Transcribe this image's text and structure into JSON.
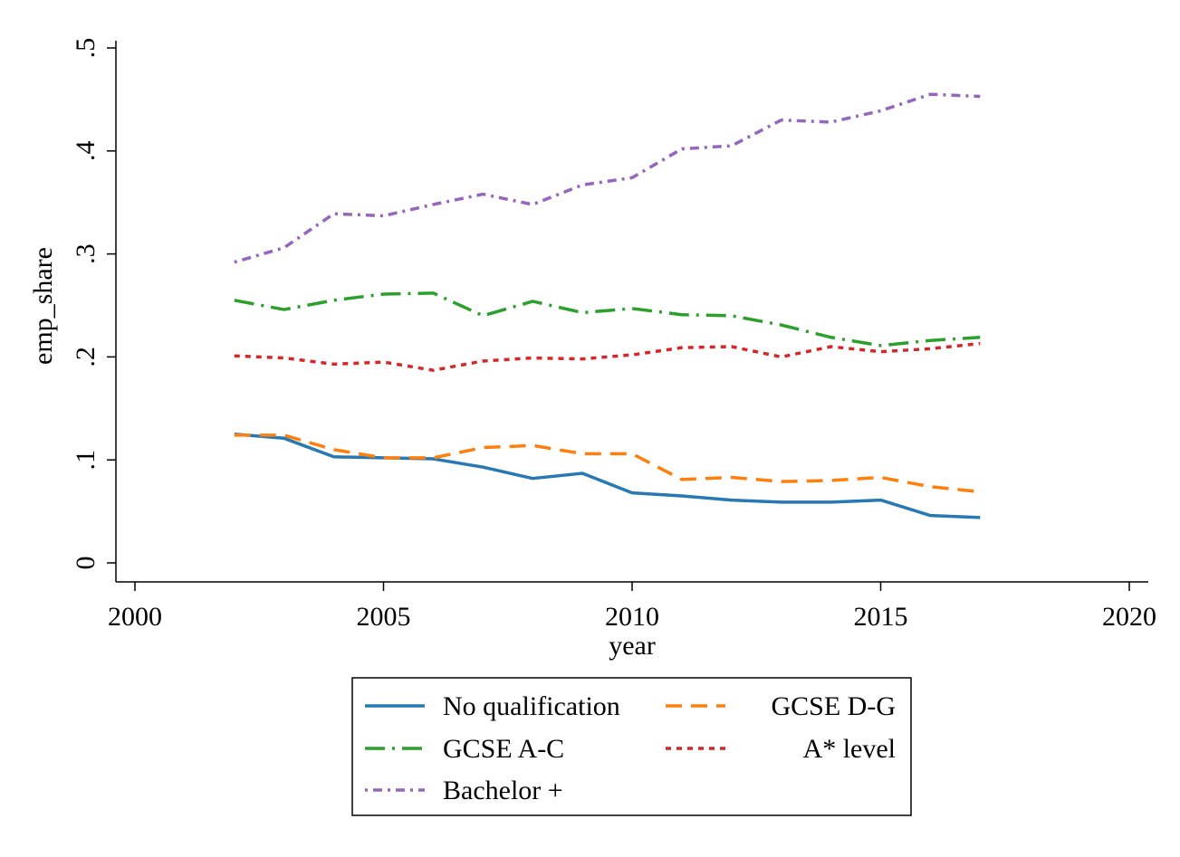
{
  "chart_data": {
    "type": "line",
    "xlabel": "year",
    "ylabel": "emp_share",
    "xlim": [
      2000,
      2020
    ],
    "ylim": [
      0,
      0.5
    ],
    "xticks": [
      {
        "value": 2000,
        "label": "2000"
      },
      {
        "value": 2005,
        "label": "2005"
      },
      {
        "value": 2010,
        "label": "2010"
      },
      {
        "value": 2015,
        "label": "2015"
      },
      {
        "value": 2020,
        "label": "2020"
      }
    ],
    "yticks": [
      {
        "value": 0,
        "label": "0"
      },
      {
        "value": 0.1,
        "label": ".1"
      },
      {
        "value": 0.2,
        "label": ".2"
      },
      {
        "value": 0.3,
        "label": ".3"
      },
      {
        "value": 0.4,
        "label": ".4"
      },
      {
        "value": 0.5,
        "label": ".5"
      }
    ],
    "grid": false,
    "legend_position": "bottom",
    "x": [
      2002,
      2003,
      2004,
      2005,
      2006,
      2007,
      2008,
      2009,
      2010,
      2011,
      2012,
      2013,
      2014,
      2015,
      2016,
      2017
    ],
    "series": [
      {
        "name": "No qualification",
        "color": "#2878b4",
        "dash": "solid",
        "values": [
          0.125,
          0.121,
          0.103,
          0.102,
          0.101,
          0.093,
          0.082,
          0.087,
          0.068,
          0.065,
          0.061,
          0.059,
          0.059,
          0.061,
          0.046,
          0.044
        ]
      },
      {
        "name": "GCSE D-G",
        "color": "#ff7f0e",
        "dash": "dash",
        "values": [
          0.124,
          0.124,
          0.11,
          0.102,
          0.102,
          0.112,
          0.114,
          0.106,
          0.106,
          0.081,
          0.083,
          0.079,
          0.08,
          0.083,
          0.074,
          0.069
        ]
      },
      {
        "name": "GCSE A-C",
        "color": "#2ca02c",
        "dash": "dashdot",
        "values": [
          0.255,
          0.246,
          0.255,
          0.261,
          0.262,
          0.24,
          0.254,
          0.243,
          0.247,
          0.241,
          0.24,
          0.231,
          0.219,
          0.211,
          0.216,
          0.219
        ]
      },
      {
        "name": "A* level",
        "color": "#d62728",
        "dash": "dot",
        "values": [
          0.201,
          0.199,
          0.193,
          0.195,
          0.187,
          0.196,
          0.199,
          0.198,
          0.202,
          0.209,
          0.21,
          0.2,
          0.21,
          0.205,
          0.208,
          0.213
        ]
      },
      {
        "name": "Bachelor +",
        "color": "#9467bd",
        "dash": "dotdash",
        "values": [
          0.292,
          0.306,
          0.339,
          0.337,
          0.348,
          0.358,
          0.348,
          0.367,
          0.374,
          0.402,
          0.405,
          0.43,
          0.428,
          0.439,
          0.455,
          0.453
        ]
      }
    ]
  }
}
